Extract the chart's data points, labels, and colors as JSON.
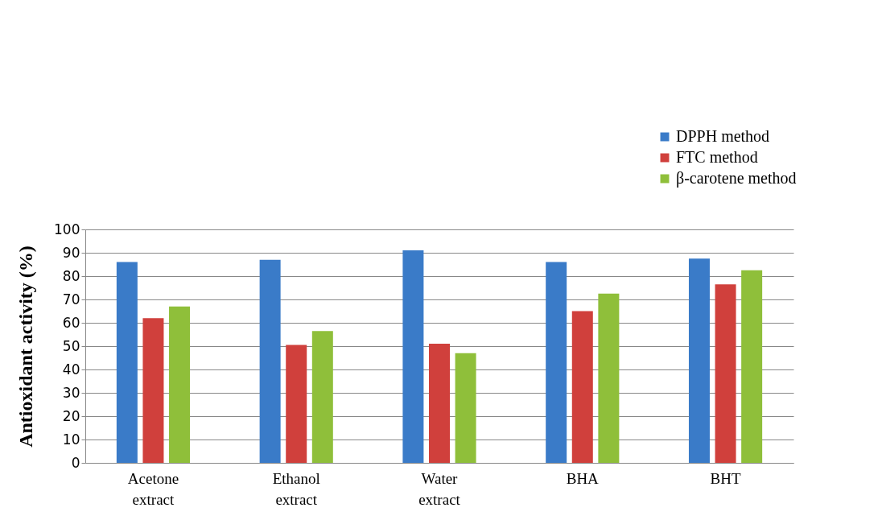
{
  "chart_data": {
    "type": "bar",
    "ylabel": "Antioxidant activity (%)",
    "categories": [
      "Acetone extract",
      "Ethanol extract",
      "Water extract",
      "BHA",
      "BHT"
    ],
    "series": [
      {
        "name": "DPPH method",
        "color": "#3a7bc8",
        "values": [
          86,
          87,
          91,
          86,
          87.5
        ]
      },
      {
        "name": "FTC method",
        "color": "#d0403c",
        "values": [
          62,
          50.5,
          51,
          65,
          76.5
        ]
      },
      {
        "name": "β-carotene method",
        "color": "#8fbf3a",
        "values": [
          67,
          56.5,
          47,
          72.5,
          82.5
        ]
      }
    ],
    "ylim": [
      0,
      100
    ],
    "yticks": [
      0,
      10,
      20,
      30,
      40,
      50,
      60,
      70,
      80,
      90,
      100
    ],
    "grid": "y",
    "legend": "top right"
  }
}
